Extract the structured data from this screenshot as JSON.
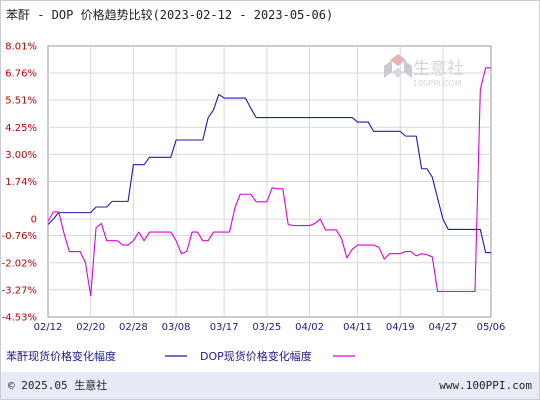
{
  "chart_data": {
    "type": "line",
    "title": "苯酐 - DOP 价格趋势比较(2023-02-12 - 2023-05-06)",
    "x": [
      "2023-02-12",
      "2023-02-13",
      "2023-02-14",
      "2023-02-15",
      "2023-02-16",
      "2023-02-17",
      "2023-02-18",
      "2023-02-19",
      "2023-02-20",
      "2023-02-21",
      "2023-02-22",
      "2023-02-23",
      "2023-02-24",
      "2023-02-25",
      "2023-02-26",
      "2023-02-27",
      "2023-02-28",
      "2023-03-01",
      "2023-03-02",
      "2023-03-03",
      "2023-03-04",
      "2023-03-05",
      "2023-03-06",
      "2023-03-07",
      "2023-03-08",
      "2023-03-09",
      "2023-03-10",
      "2023-03-11",
      "2023-03-12",
      "2023-03-13",
      "2023-03-14",
      "2023-03-15",
      "2023-03-16",
      "2023-03-17",
      "2023-03-18",
      "2023-03-19",
      "2023-03-20",
      "2023-03-21",
      "2023-03-22",
      "2023-03-23",
      "2023-03-24",
      "2023-03-25",
      "2023-03-26",
      "2023-03-27",
      "2023-03-28",
      "2023-03-29",
      "2023-03-30",
      "2023-03-31",
      "2023-04-01",
      "2023-04-02",
      "2023-04-03",
      "2023-04-04",
      "2023-04-05",
      "2023-04-06",
      "2023-04-07",
      "2023-04-08",
      "2023-04-09",
      "2023-04-10",
      "2023-04-11",
      "2023-04-12",
      "2023-04-13",
      "2023-04-14",
      "2023-04-15",
      "2023-04-16",
      "2023-04-17",
      "2023-04-18",
      "2023-04-19",
      "2023-04-20",
      "2023-04-21",
      "2023-04-22",
      "2023-04-23",
      "2023-04-24",
      "2023-04-25",
      "2023-04-26",
      "2023-04-27",
      "2023-04-28",
      "2023-04-29",
      "2023-04-30",
      "2023-05-01",
      "2023-05-02",
      "2023-05-03",
      "2023-05-04",
      "2023-05-05",
      "2023-05-06"
    ],
    "series": [
      {
        "name": "苯酐现货价格变化幅度",
        "color": "#1c1cb4",
        "values": [
          -0.25,
          0.0,
          0.3,
          0.3,
          0.3,
          0.3,
          0.3,
          0.3,
          0.3,
          0.56,
          0.56,
          0.56,
          0.82,
          0.82,
          0.82,
          0.82,
          2.52,
          2.52,
          2.52,
          2.86,
          2.86,
          2.86,
          2.86,
          2.86,
          3.66,
          3.66,
          3.66,
          3.66,
          3.66,
          3.66,
          4.69,
          5.05,
          5.77,
          5.6,
          5.6,
          5.6,
          5.6,
          5.6,
          5.13,
          4.7,
          4.7,
          4.7,
          4.7,
          4.7,
          4.7,
          4.7,
          4.7,
          4.7,
          4.7,
          4.7,
          4.7,
          4.7,
          4.7,
          4.7,
          4.7,
          4.7,
          4.7,
          4.7,
          4.49,
          4.49,
          4.49,
          4.06,
          4.06,
          4.06,
          4.06,
          4.06,
          4.06,
          3.84,
          3.84,
          3.84,
          2.33,
          2.33,
          1.94,
          0.96,
          0.0,
          -0.48,
          -0.48,
          -0.48,
          -0.48,
          -0.48,
          -0.48,
          -0.48,
          -1.55,
          -1.55
        ]
      },
      {
        "name": "DOP现货价格变化幅度",
        "color": "#e000e0",
        "values": [
          -0.1,
          0.33,
          0.33,
          -0.66,
          -1.5,
          -1.5,
          -1.5,
          -2.0,
          -3.55,
          -0.4,
          -0.2,
          -1.0,
          -1.0,
          -1.0,
          -1.2,
          -1.2,
          -1.0,
          -0.6,
          -1.0,
          -0.6,
          -0.6,
          -0.6,
          -0.6,
          -0.6,
          -1.0,
          -1.6,
          -1.5,
          -0.6,
          -0.6,
          -1.0,
          -1.0,
          -0.6,
          -0.6,
          -0.6,
          -0.6,
          0.5,
          1.15,
          1.15,
          1.15,
          0.8,
          0.8,
          0.8,
          1.45,
          1.4,
          1.4,
          -0.25,
          -0.3,
          -0.3,
          -0.3,
          -0.3,
          -0.2,
          0.0,
          -0.5,
          -0.5,
          -0.5,
          -0.9,
          -1.8,
          -1.4,
          -1.2,
          -1.2,
          -1.2,
          -1.2,
          -1.3,
          -1.85,
          -1.6,
          -1.6,
          -1.6,
          -1.5,
          -1.5,
          -1.7,
          -1.6,
          -1.65,
          -1.75,
          -3.35,
          -3.35,
          -3.35,
          -3.35,
          -3.35,
          -3.35,
          -3.35,
          -3.35,
          6.0,
          7.0,
          7.0
        ]
      }
    ],
    "y_ticks": [
      "8.01%",
      "6.76%",
      "5.51%",
      "4.25%",
      "3.00%",
      "1.74%",
      "0",
      "-0.76%",
      "-2.02%",
      "-3.27%",
      "-4.53%"
    ],
    "y_tick_values": [
      8.01,
      6.76,
      5.51,
      4.25,
      3.0,
      1.74,
      0.0,
      -0.76,
      -2.02,
      -3.27,
      -4.53
    ],
    "x_ticks": [
      "02/12",
      "02/20",
      "02/28",
      "03/08",
      "03/17",
      "03/25",
      "04/02",
      "04/11",
      "04/19",
      "04/27",
      "05/06"
    ],
    "x_tick_index": [
      0,
      8,
      16,
      24,
      33,
      41,
      49,
      58,
      66,
      74,
      83
    ],
    "ylim": [
      -4.53,
      8.01
    ],
    "grid": true,
    "legend_position": "bottom"
  },
  "watermark": {
    "text": "生意社",
    "url": "100PPI.COM"
  },
  "footer": {
    "left": "© 2025.05 生意社",
    "right": "www.100PPI.com"
  }
}
